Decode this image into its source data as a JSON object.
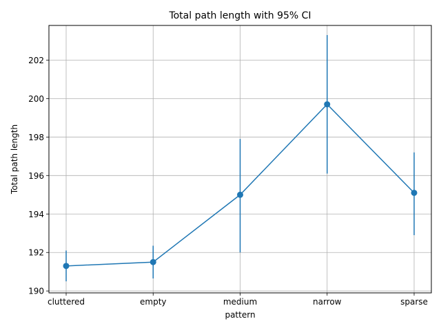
{
  "chart_data": {
    "type": "line",
    "title": "Total path length with 95% CI",
    "xlabel": "pattern",
    "ylabel": "Total path length",
    "categories": [
      "cluttered",
      "empty",
      "medium",
      "narrow",
      "sparse"
    ],
    "series": [
      {
        "values": [
          191.3,
          191.5,
          195.0,
          199.7,
          195.1
        ],
        "ci_lower": [
          190.5,
          190.65,
          192.0,
          196.1,
          192.9
        ],
        "ci_upper": [
          192.1,
          192.35,
          197.9,
          203.3,
          197.2
        ],
        "color": "#1f77b4",
        "marker": "circle",
        "errorbars": true
      }
    ],
    "ylim": [
      189.9,
      203.8
    ],
    "yticks": [
      190,
      192,
      194,
      196,
      198,
      200,
      202
    ],
    "grid": true
  }
}
